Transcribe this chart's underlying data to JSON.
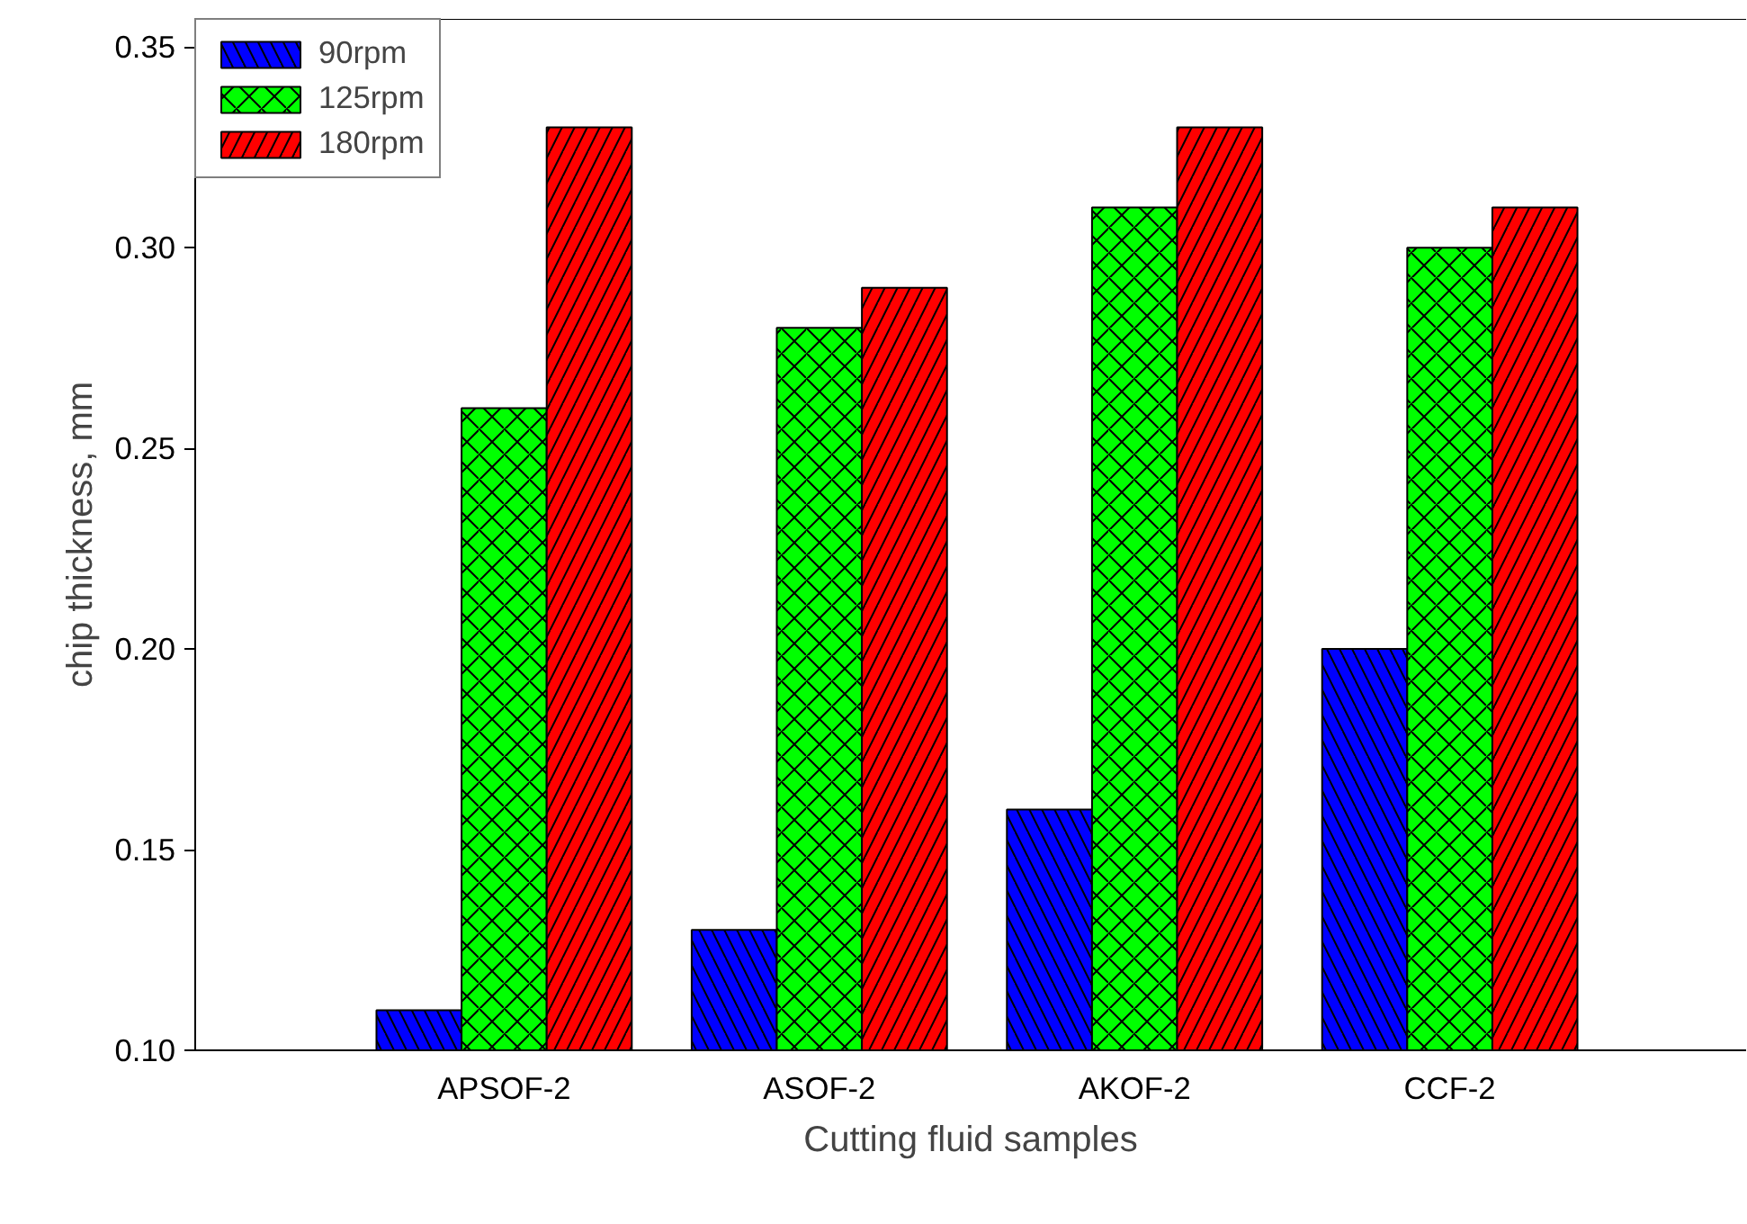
{
  "chart_data": {
    "type": "bar",
    "xlabel": "Cutting fluid samples",
    "ylabel": "chip thickness, mm",
    "categories": [
      "APSOF-2",
      "ASOF-2",
      "AKOF-2",
      "CCF-2"
    ],
    "series": [
      {
        "name": "90rpm",
        "color": "#0000ff",
        "values": [
          0.11,
          0.13,
          0.16,
          0.2
        ]
      },
      {
        "name": "125rpm",
        "color": "#00ff00",
        "values": [
          0.26,
          0.28,
          0.31,
          0.3
        ]
      },
      {
        "name": "180rpm",
        "color": "#ff0000",
        "values": [
          0.33,
          0.29,
          0.33,
          0.31
        ]
      }
    ],
    "ylim": [
      0.1,
      0.357
    ],
    "yticks": [
      {
        "value": 0.1,
        "label": "0.10"
      },
      0.15,
      {
        "value": 0.2,
        "label": "0.20"
      },
      0.25,
      {
        "value": 0.3,
        "label": "0.30"
      },
      0.35
    ],
    "grid": false,
    "legend": "top left"
  }
}
